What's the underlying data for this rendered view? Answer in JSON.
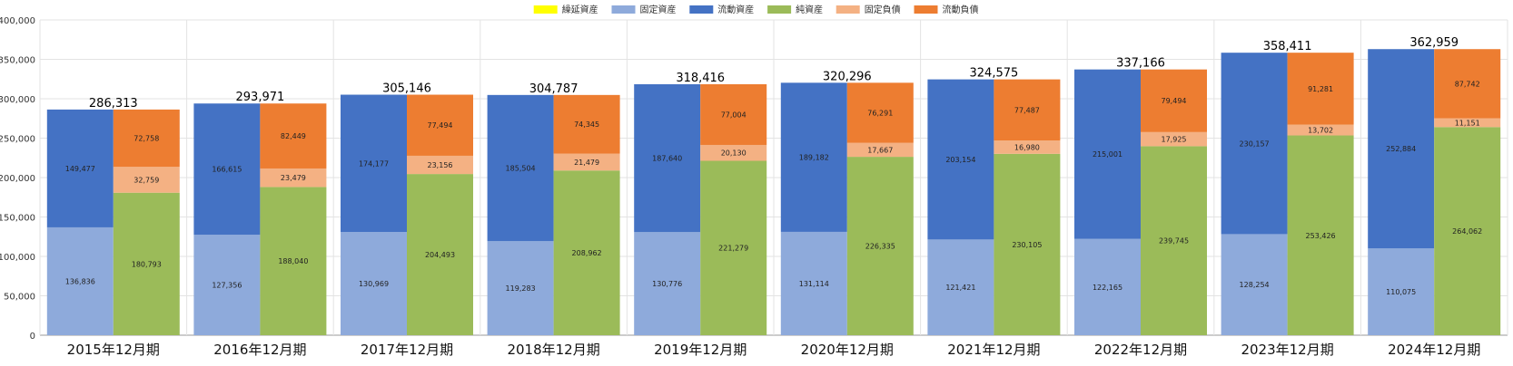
{
  "chart_data": {
    "type": "bar",
    "stacked": true,
    "grouped_pairs": true,
    "categories": [
      "2015年12月期",
      "2016年12月期",
      "2017年12月期",
      "2018年12月期",
      "2019年12月期",
      "2020年12月期",
      "2021年12月期",
      "2022年12月期",
      "2023年12月期",
      "2024年12月期"
    ],
    "ylim": [
      0,
      400000
    ],
    "yticks": [
      0,
      50000,
      100000,
      150000,
      200000,
      250000,
      300000,
      350000,
      400000
    ],
    "ytick_labels": [
      "0",
      "50,000",
      "100,000",
      "150,000",
      "200,000",
      "250,000",
      "300,000",
      "350,000",
      "400,000"
    ],
    "legend": [
      {
        "name": "繰延資産",
        "color": "#ffff00"
      },
      {
        "name": "固定資産",
        "color": "#8eaadb"
      },
      {
        "name": "流動資産",
        "color": "#4472c4"
      },
      {
        "name": "純資産",
        "color": "#9bbb59"
      },
      {
        "name": "固定負債",
        "color": "#f4b183"
      },
      {
        "name": "流動負債",
        "color": "#ed7d31"
      }
    ],
    "stacks": [
      {
        "name": "資産",
        "series": [
          {
            "name": "繰延資産",
            "color": "#ffff00",
            "values": [
              0,
              0,
              0,
              0,
              0,
              0,
              0,
              0,
              0,
              0
            ]
          },
          {
            "name": "固定資産",
            "color": "#8eaadb",
            "values": [
              136836,
              127356,
              130969,
              119283,
              130776,
              131114,
              121421,
              122165,
              128254,
              110075
            ],
            "labels": [
              "136,836",
              "127,356",
              "130,969",
              "119,283",
              "130,776",
              "131,114",
              "121,421",
              "122,165",
              "128,254",
              "110,075"
            ]
          },
          {
            "name": "流動資産",
            "color": "#4472c4",
            "values": [
              149477,
              166615,
              174177,
              185504,
              187640,
              189182,
              203154,
              215001,
              230157,
              252884
            ],
            "labels": [
              "149,477",
              "166,615",
              "174,177",
              "185,504",
              "187,640",
              "189,182",
              "203,154",
              "215,001",
              "230,157",
              "252,884"
            ]
          }
        ]
      },
      {
        "name": "負債・純資産",
        "series": [
          {
            "name": "純資産",
            "color": "#9bbb59",
            "values": [
              180793,
              188040,
              204493,
              208962,
              221279,
              226335,
              230105,
              239745,
              253426,
              264062
            ],
            "labels": [
              "180,793",
              "188,040",
              "204,493",
              "208,962",
              "221,279",
              "226,335",
              "230,105",
              "239,745",
              "253,426",
              "264,062"
            ]
          },
          {
            "name": "固定負債",
            "color": "#f4b183",
            "values": [
              32759,
              23479,
              23156,
              21479,
              20130,
              17667,
              16980,
              17925,
              13702,
              11151
            ],
            "labels": [
              "32,759",
              "23,479",
              "23,156",
              "21,479",
              "20,130",
              "17,667",
              "16,980",
              "17,925",
              "13,702",
              "11,151"
            ]
          },
          {
            "name": "流動負債",
            "color": "#ed7d31",
            "values": [
              72758,
              82449,
              77494,
              74345,
              77004,
              76291,
              77487,
              79494,
              91281,
              87742
            ],
            "labels": [
              "72,758",
              "82,449",
              "77,494",
              "74,345",
              "77,004",
              "76,291",
              "77,487",
              "79,494",
              "91,281",
              "87,742"
            ]
          }
        ]
      }
    ],
    "totals": [
      286313,
      293971,
      305146,
      304787,
      318416,
      320296,
      324575,
      337166,
      358411,
      362959
    ],
    "total_labels": [
      "286,313",
      "293,971",
      "305,146",
      "304,787",
      "318,416",
      "320,296",
      "324,575",
      "337,166",
      "358,411",
      "362,959"
    ]
  }
}
